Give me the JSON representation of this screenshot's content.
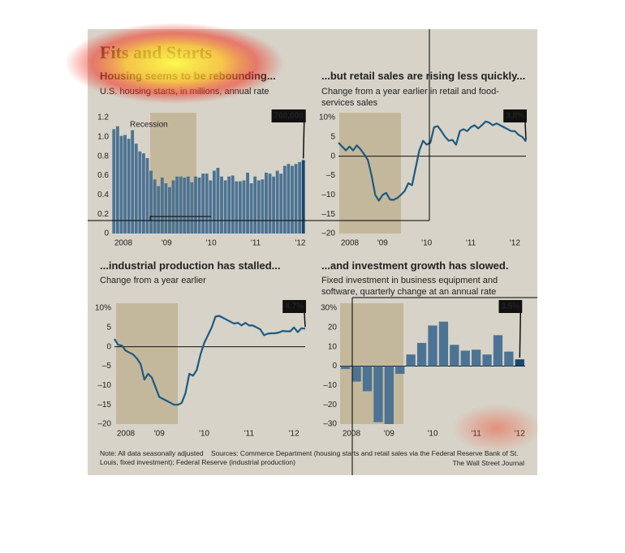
{
  "header": {
    "title": "Fits and Starts"
  },
  "chart_data": [
    {
      "type": "bar",
      "title": "Housing seems to be rebounding...",
      "subtitle": "U.S. housing starts, in millions, annual rate",
      "recession_label": "Recession",
      "annotation": "760,000",
      "categories": [
        "2008",
        null,
        null,
        null,
        null,
        null,
        null,
        null,
        null,
        null,
        null,
        null,
        "'09",
        null,
        null,
        null,
        null,
        null,
        null,
        null,
        null,
        null,
        null,
        null,
        "'10",
        null,
        null,
        null,
        null,
        null,
        null,
        null,
        null,
        null,
        null,
        null,
        "'11",
        null,
        null,
        null,
        null,
        null,
        null,
        null,
        null,
        null,
        null,
        null,
        "'12",
        null,
        null,
        null
      ],
      "values": [
        1.08,
        1.11,
        1.01,
        1.02,
        0.98,
        1.07,
        0.93,
        0.85,
        0.83,
        0.78,
        0.65,
        0.56,
        0.49,
        0.58,
        0.52,
        0.48,
        0.55,
        0.59,
        0.59,
        0.58,
        0.59,
        0.53,
        0.59,
        0.58,
        0.62,
        0.62,
        0.55,
        0.65,
        0.68,
        0.59,
        0.55,
        0.59,
        0.6,
        0.54,
        0.54,
        0.55,
        0.63,
        0.52,
        0.59,
        0.55,
        0.56,
        0.63,
        0.62,
        0.59,
        0.65,
        0.62,
        0.7,
        0.72,
        0.7,
        0.72,
        0.74,
        0.76
      ],
      "color": "#4c7393",
      "highlight_color": "#17486d",
      "ylim": [
        0,
        1.2
      ],
      "yticks": [
        0,
        0.2,
        0.4,
        0.6,
        0.8,
        {
          "value": 1,
          "label": "1.0"
        },
        1.2
      ]
    },
    {
      "type": "line",
      "title": "...but retail sales are rising less quickly...",
      "subtitle": "Change from a year earlier in retail and food-services sales",
      "annotation": "3.8%",
      "categories": [
        "2008",
        null,
        null,
        null,
        null,
        null,
        null,
        null,
        null,
        null,
        null,
        null,
        "'09",
        null,
        null,
        null,
        null,
        null,
        null,
        null,
        null,
        null,
        null,
        null,
        "'10",
        null,
        null,
        null,
        null,
        null,
        null,
        null,
        null,
        null,
        null,
        null,
        "'11",
        null,
        null,
        null,
        null,
        null,
        null,
        null,
        null,
        null,
        null,
        null,
        "'12",
        null,
        null,
        null
      ],
      "values": [
        3.5,
        2.5,
        1.5,
        2.5,
        1.5,
        2.8,
        1.8,
        0.5,
        -1,
        -5,
        -10,
        -11.5,
        -10,
        -9.5,
        -11.2,
        -11.3,
        -10.8,
        -10,
        -9,
        -7,
        -7.5,
        -3,
        1.5,
        4,
        3,
        3.5,
        7.5,
        7.8,
        6.5,
        5,
        4,
        4.2,
        3,
        6.5,
        7,
        6.5,
        7.5,
        8,
        7.2,
        8,
        9,
        8.7,
        8,
        8.5,
        8,
        7.5,
        7,
        6.5,
        6.5,
        5.5,
        5,
        3.8
      ],
      "color": "#1d5a80",
      "ylim": [
        -20,
        10
      ],
      "yticks": [
        {
          "value": -20,
          "label": "–20"
        },
        {
          "value": -15,
          "label": "–15"
        },
        {
          "value": -10,
          "label": "–10"
        },
        {
          "value": -5,
          "label": "–5"
        },
        0,
        5,
        {
          "value": 10,
          "label": "10%"
        }
      ]
    },
    {
      "type": "line",
      "title": "...industrial production has stalled...",
      "subtitle": "Change from a year earlier",
      "annotation": "4.7%",
      "categories": [
        "2008",
        null,
        null,
        null,
        null,
        null,
        null,
        null,
        null,
        null,
        null,
        null,
        "'09",
        null,
        null,
        null,
        null,
        null,
        null,
        null,
        null,
        null,
        null,
        null,
        "'10",
        null,
        null,
        null,
        null,
        null,
        null,
        null,
        null,
        null,
        null,
        null,
        "'11",
        null,
        null,
        null,
        null,
        null,
        null,
        null,
        null,
        null,
        null,
        null,
        "'12",
        null,
        null,
        null
      ],
      "values": [
        2,
        0.5,
        0.3,
        -1,
        -1.5,
        -2,
        -3,
        -4.5,
        -8.5,
        -7,
        -8,
        -10.5,
        -13,
        -13.5,
        -14,
        -14.5,
        -15,
        -15,
        -14.5,
        -12,
        -7,
        -7.5,
        -6,
        -2,
        1,
        3,
        5,
        7.8,
        8,
        7.5,
        7,
        6.5,
        6,
        6.2,
        5.5,
        6.2,
        5.5,
        5.5,
        5,
        4.5,
        3,
        3.4,
        3.5,
        3.5,
        3.7,
        4.1,
        4,
        4,
        5,
        3.8,
        4.8,
        4.7
      ],
      "color": "#1d5a80",
      "ylim": [
        -20,
        10
      ],
      "yticks": [
        {
          "value": -20,
          "label": "–20"
        },
        {
          "value": -15,
          "label": "–15"
        },
        {
          "value": -10,
          "label": "–10"
        },
        {
          "value": -5,
          "label": "–5"
        },
        0,
        5,
        {
          "value": 10,
          "label": "10%"
        }
      ]
    },
    {
      "type": "bar",
      "title": "...and investment growth has slowed.",
      "subtitle": "Fixed investment in business equipment and software, quarterly change at an annual rate",
      "annotation": "3.5%",
      "categories": [
        "2008",
        null,
        null,
        null,
        "'09",
        null,
        null,
        null,
        "'10",
        null,
        null,
        null,
        "'11",
        null,
        null,
        null,
        "'12"
      ],
      "values": [
        -1.5,
        -8,
        -13,
        -29,
        -30,
        -4,
        6,
        12,
        21,
        23,
        11,
        8,
        8.5,
        6,
        16,
        7.5,
        3.5
      ],
      "color": "#4c7393",
      "highlight_color": "#17486d",
      "ylim": [
        -30,
        30
      ],
      "yticks": [
        {
          "value": -30,
          "label": "–30"
        },
        {
          "value": -20,
          "label": "–20"
        },
        {
          "value": -10,
          "label": "–10"
        },
        0,
        10,
        20,
        {
          "value": 30,
          "label": "30%"
        }
      ]
    }
  ],
  "footer": {
    "note": "Note: All data seasonally adjusted    Sources: Commerce Department (housing starts and retail sales via the Federal Reserve Bank of St. Louis, fixed investment); Federal Reserve (industrial production)",
    "credit": "The Wall Street Journal"
  }
}
